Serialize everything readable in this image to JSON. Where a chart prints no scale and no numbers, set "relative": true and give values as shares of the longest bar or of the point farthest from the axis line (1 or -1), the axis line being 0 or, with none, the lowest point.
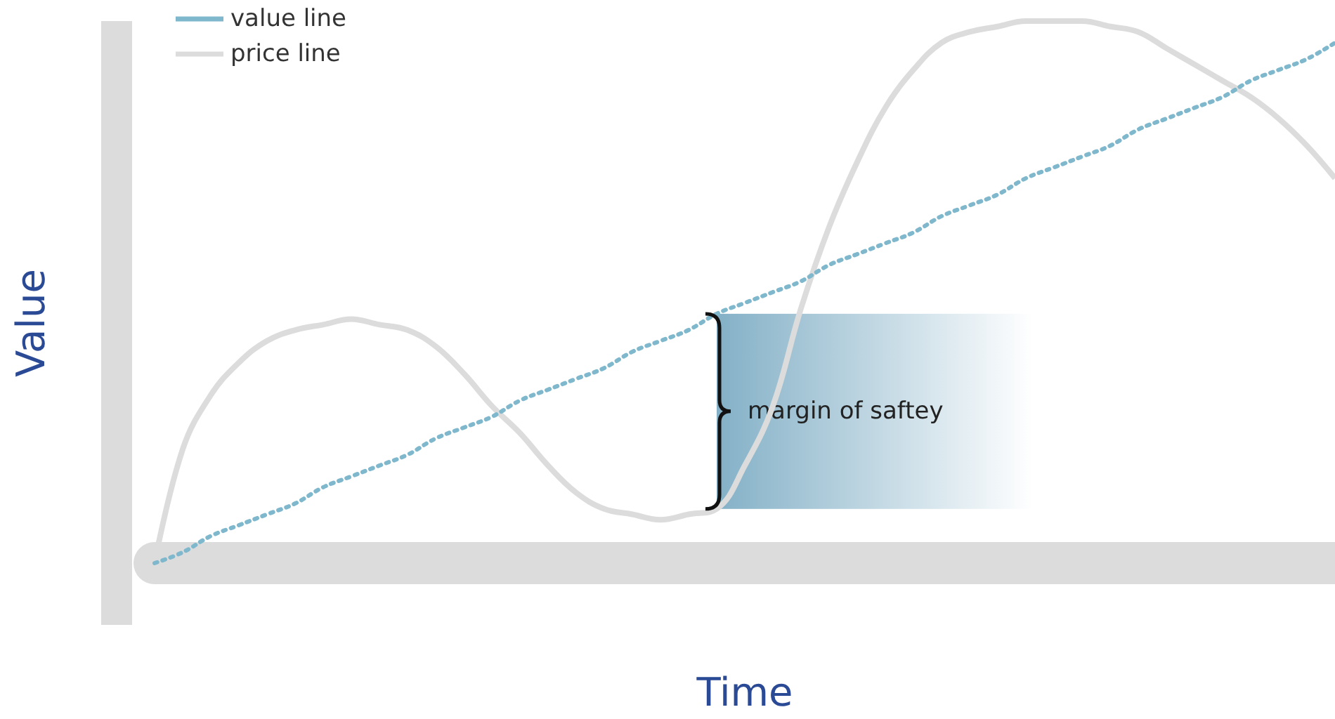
{
  "chart_data": {
    "type": "line",
    "relative": true,
    "xlabel": "Time",
    "ylabel": "Value",
    "legend": "top left",
    "marker": "none",
    "grid": false,
    "tick_labels": false,
    "categories": [
      null,
      null,
      null,
      null,
      null,
      null,
      null,
      null,
      null,
      null,
      null,
      null,
      null,
      null,
      null,
      null,
      null,
      null,
      null,
      null,
      null,
      null,
      null,
      null,
      null,
      null,
      null,
      null,
      null,
      null,
      null,
      null,
      null,
      null,
      null,
      null,
      null,
      null,
      null,
      null,
      null,
      null,
      null
    ],
    "series": [
      {
        "name": "value line",
        "color": "#7fb8cc",
        "line_style": "dotted",
        "values": [
          0,
          0.02,
          0.05,
          0.07,
          0.09,
          0.11,
          0.14,
          0.16,
          0.18,
          0.2,
          0.23,
          0.25,
          0.27,
          0.3,
          0.32,
          0.34,
          0.36,
          0.39,
          0.41,
          0.43,
          0.46,
          0.48,
          0.5,
          0.52,
          0.55,
          0.57,
          0.59,
          0.61,
          0.64,
          0.66,
          0.68,
          0.71,
          0.73,
          0.75,
          0.77,
          0.8,
          0.82,
          0.84,
          0.86,
          0.89,
          0.91,
          0.93,
          0.96
        ]
      },
      {
        "name": "price line",
        "color": "#dcdcdc",
        "line_style": "solid",
        "values": [
          0,
          0.21,
          0.31,
          0.37,
          0.41,
          0.43,
          0.44,
          0.45,
          0.44,
          0.43,
          0.4,
          0.35,
          0.29,
          0.24,
          0.18,
          0.13,
          0.1,
          0.09,
          0.08,
          0.09,
          0.1,
          0.18,
          0.29,
          0.47,
          0.62,
          0.74,
          0.84,
          0.91,
          0.96,
          0.98,
          0.99,
          1,
          1,
          1,
          0.99,
          0.98,
          0.95,
          0.92,
          0.89,
          0.86,
          0.82,
          0.77,
          0.71
        ]
      }
    ],
    "annotations": [
      "margin of saftey"
    ]
  }
}
